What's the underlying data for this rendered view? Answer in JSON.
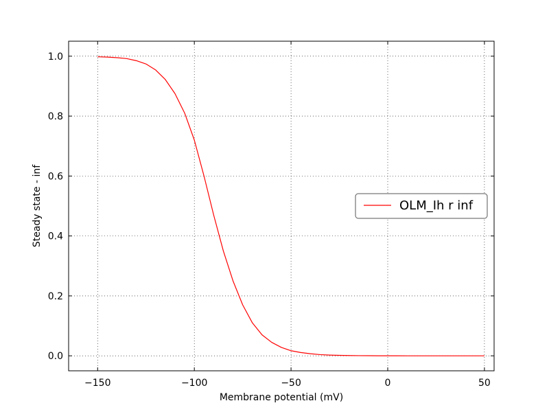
{
  "chart_data": {
    "type": "line",
    "title": "",
    "xlabel": "Membrane potential (mV)",
    "ylabel": "Steady state - inf",
    "xlim": [
      -165,
      55
    ],
    "ylim": [
      -0.05,
      1.05
    ],
    "xticks": [
      -150,
      -100,
      -50,
      0,
      50
    ],
    "xtick_labels": [
      "−150",
      "−100",
      "−50",
      "0",
      "50"
    ],
    "yticks": [
      0.0,
      0.2,
      0.4,
      0.6,
      0.8,
      1.0
    ],
    "ytick_labels": [
      "0.0",
      "0.2",
      "0.4",
      "0.6",
      "0.8",
      "1.0"
    ],
    "grid": true,
    "legend_position": "center-right",
    "series": [
      {
        "name": "OLM_Ih r inf",
        "color": "#ff0000",
        "x": [
          -150,
          -145,
          -140,
          -135,
          -130,
          -125,
          -120,
          -115,
          -110,
          -105,
          -100,
          -95,
          -90,
          -85,
          -80,
          -75,
          -70,
          -65,
          -60,
          -55,
          -50,
          -45,
          -40,
          -35,
          -30,
          -25,
          -20,
          -15,
          -10,
          -5,
          0,
          5,
          10,
          15,
          20,
          25,
          30,
          35,
          40,
          45,
          50
        ],
        "y": [
          0.998,
          0.997,
          0.995,
          0.992,
          0.985,
          0.974,
          0.954,
          0.922,
          0.875,
          0.81,
          0.72,
          0.6,
          0.47,
          0.35,
          0.25,
          0.17,
          0.11,
          0.07,
          0.045,
          0.028,
          0.017,
          0.011,
          0.007,
          0.004,
          0.0025,
          0.0015,
          0.001,
          0.0006,
          0.0004,
          0.0002,
          0.0001,
          0.0001,
          0.0,
          0.0,
          0.0,
          0.0,
          0.0,
          0.0,
          0.0,
          0.0,
          0.0
        ]
      }
    ]
  }
}
